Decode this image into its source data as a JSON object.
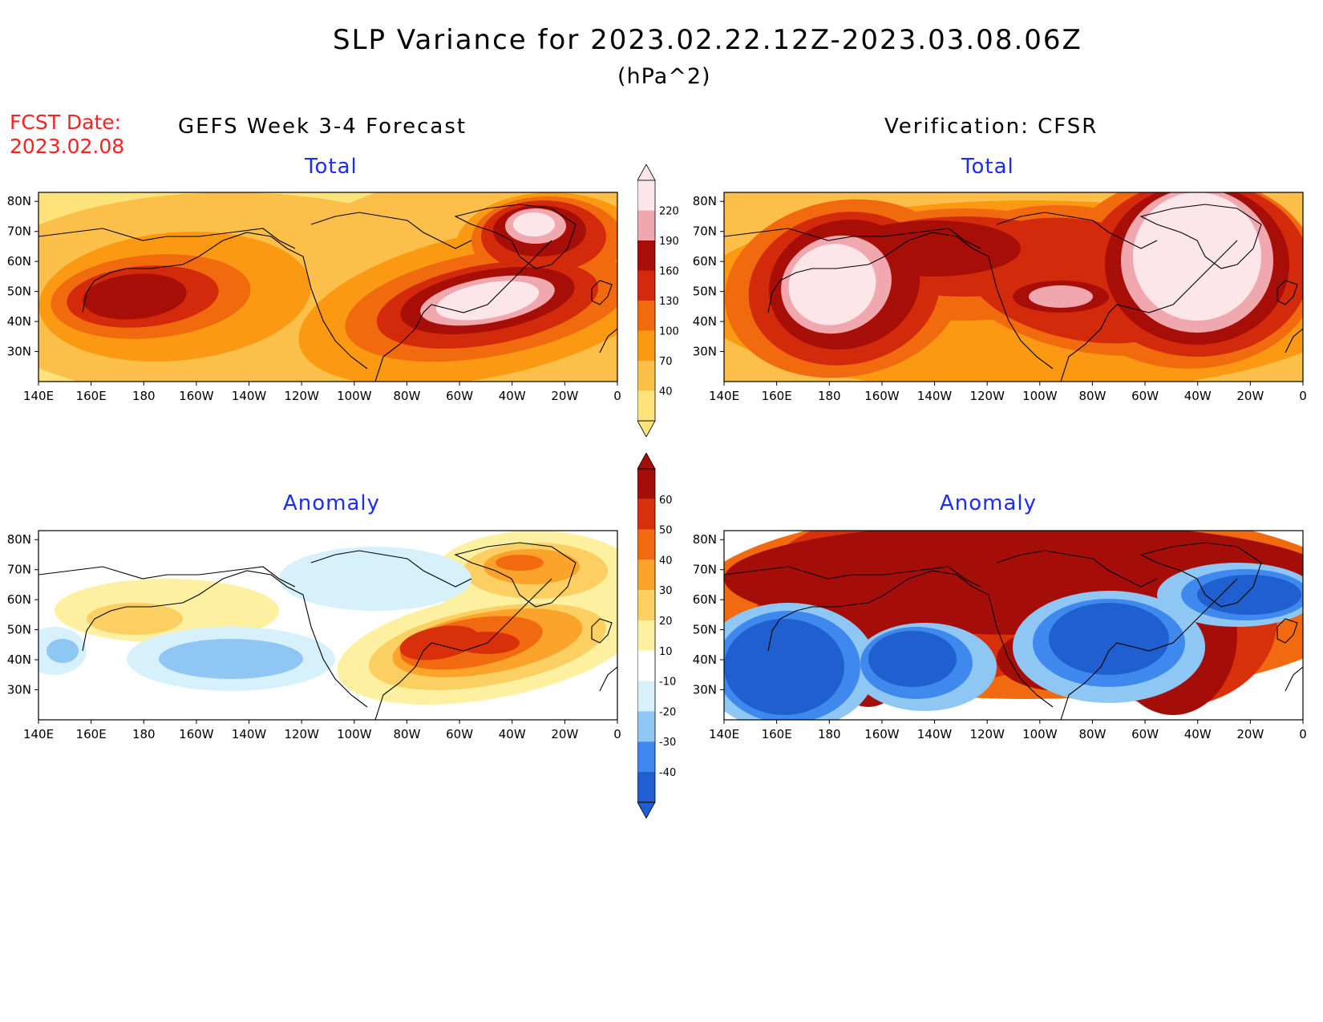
{
  "header": {
    "title": "SLP Variance for 2023.02.22.12Z-2023.03.08.06Z",
    "units": "(hPa^2)",
    "fcst_label": "FCST Date:",
    "fcst_date": "2023.02.08"
  },
  "columns": {
    "left": "GEFS Week 3-4 Forecast",
    "right": "Verification: CFSR"
  },
  "rows": {
    "top": "Total",
    "bottom": "Anomaly"
  },
  "axes": {
    "lon_ticks": [
      "140E",
      "160E",
      "180",
      "160W",
      "140W",
      "120W",
      "100W",
      "80W",
      "60W",
      "40W",
      "20W",
      "0"
    ],
    "lat_ticks": [
      "30N",
      "40N",
      "50N",
      "60N",
      "70N",
      "80N"
    ]
  },
  "colorbars": {
    "total": {
      "levels": [
        "40",
        "70",
        "100",
        "130",
        "160",
        "190",
        "220"
      ],
      "colors": [
        "#fde37a",
        "#fcc04a",
        "#fb9a12",
        "#f26a0e",
        "#d42a0c",
        "#a80e08",
        "#f0a8ae",
        "#fde6ea"
      ]
    },
    "anomaly": {
      "levels": [
        "-40",
        "-30",
        "-20",
        "-10",
        "10",
        "20",
        "30",
        "40",
        "50",
        "60"
      ],
      "colors": [
        "#1f5fd0",
        "#3e88ee",
        "#8ec6f4",
        "#d6f0fc",
        "#ffffff",
        "#fdf0a0",
        "#fccf62",
        "#fba32a",
        "#f26a10",
        "#d9300c",
        "#a50e08"
      ]
    }
  },
  "panels": [
    {
      "id": "forecast-total",
      "column": "left",
      "row": "top",
      "field": "Total"
    },
    {
      "id": "verification-total",
      "column": "right",
      "row": "top",
      "field": "Total"
    },
    {
      "id": "forecast-anomaly",
      "column": "left",
      "row": "bottom",
      "field": "Anomaly"
    },
    {
      "id": "verification-anomaly",
      "column": "right",
      "row": "bottom",
      "field": "Anomaly"
    }
  ]
}
